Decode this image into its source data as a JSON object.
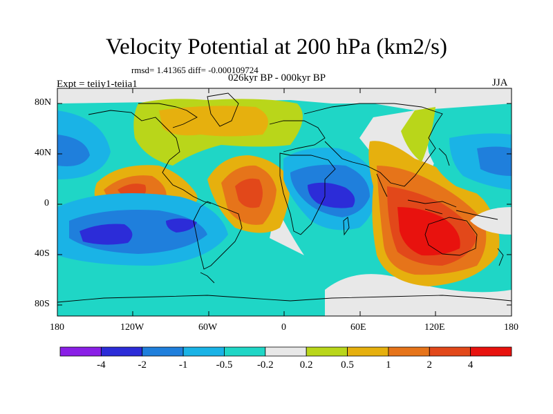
{
  "header": {
    "title": "Velocity Potential at 200 hPa (km2/s)",
    "stats": "rmsd= 1.41365 diff= -0.000109724",
    "period": "026kyr BP - 000kyr BP",
    "experiment": "Expt = teiiy1-teiia1",
    "season": "JJA"
  },
  "map": {
    "lat_labels": [
      "80N",
      "40N",
      "0",
      "40S",
      "80S"
    ],
    "lon_labels": [
      "180",
      "120W",
      "60W",
      "0",
      "60E",
      "120E",
      "180"
    ]
  },
  "colorbar": {
    "labels": [
      "-4",
      "-2",
      "-1",
      "-0.5",
      "-0.2",
      "0.2",
      "0.5",
      "1",
      "2",
      "4"
    ],
    "colors": [
      "#8a1fe6",
      "#2c2cd8",
      "#1f7fdc",
      "#1ab3e6",
      "#1fd6c6",
      "#e8e8e8",
      "#b9d61a",
      "#e6b00e",
      "#e6741a",
      "#e2481a",
      "#e8120e"
    ]
  }
}
